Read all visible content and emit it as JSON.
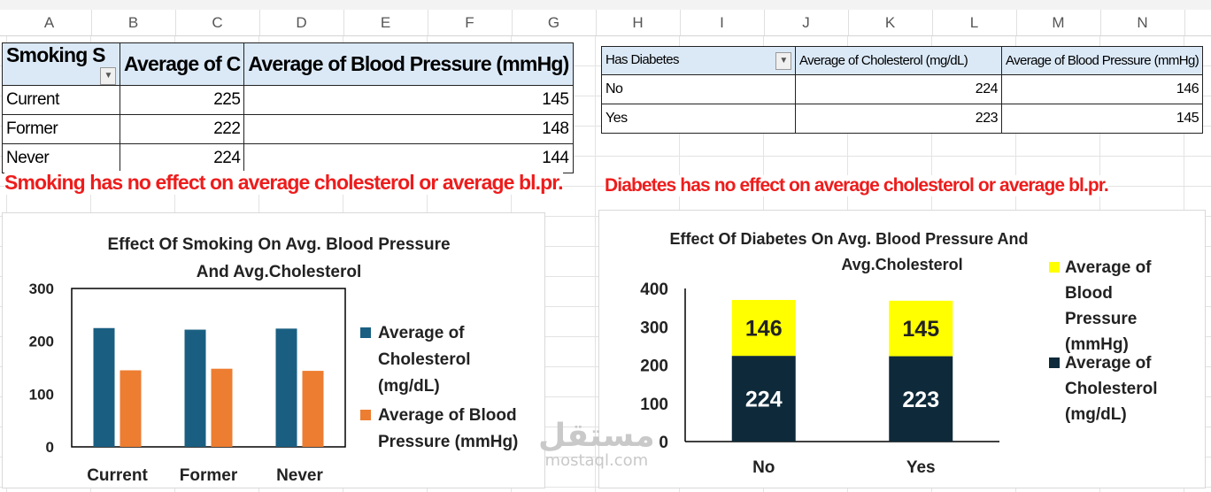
{
  "columns": [
    "A",
    "B",
    "C",
    "D",
    "E",
    "F",
    "G",
    "H",
    "I",
    "J",
    "K",
    "L",
    "M",
    "N"
  ],
  "table1": {
    "headers": [
      "Smoking S",
      "Average of C",
      "Average of Blood Pressure (mmHg)"
    ],
    "rows": [
      {
        "label": "Current",
        "chol": "225",
        "bp": "145"
      },
      {
        "label": "Former",
        "chol": "222",
        "bp": "148"
      },
      {
        "label": "Never",
        "chol": "224",
        "bp": "144"
      }
    ]
  },
  "table2": {
    "headers": [
      "Has Diabetes",
      "Average of Cholesterol (mg/dL)",
      "Average of Blood Pressure (mmHg)"
    ],
    "rows": [
      {
        "label": "No",
        "chol": "224",
        "bp": "146"
      },
      {
        "label": "Yes",
        "chol": "223",
        "bp": "145"
      }
    ]
  },
  "notes": {
    "smoking": "Smoking has no effect on average cholesterol or average bl.pr.",
    "diabetes": "Diabetes  has no effect on average cholesterol or average bl.pr."
  },
  "watermark": {
    "arabic": "مستقل",
    "latin": "mostaql.com"
  },
  "colors": {
    "cholesterol_bar": "#1a5f82",
    "bp_bar": "#ed7d31",
    "stack_chol": "#0e2a3a",
    "stack_bp": "#ffff00",
    "note_red": "#ee1c1c",
    "header_fill": "#dbe9f7"
  },
  "chart_data": [
    {
      "type": "bar",
      "title_lines": [
        "Effect Of Smoking On Avg. Blood Pressure",
        "And  Avg.Cholesterol"
      ],
      "categories": [
        "Current",
        "Former",
        "Never"
      ],
      "series": [
        {
          "name": "Average of Cholesterol (mg/dL)",
          "legend_lines": [
            "Average of",
            "Cholesterol",
            "(mg/dL)"
          ],
          "values": [
            225,
            222,
            224
          ]
        },
        {
          "name": "Average of Blood Pressure (mmHg)",
          "legend_lines": [
            "Average of Blood",
            "Pressure (mmHg)"
          ],
          "values": [
            145,
            148,
            144
          ]
        }
      ],
      "ylim": [
        0,
        300
      ],
      "yticks": [
        0,
        100,
        200,
        300
      ],
      "legend_position": "right"
    },
    {
      "type": "stacked-bar",
      "title_lines": [
        "Effect Of Diabetes On Avg. Blood Pressure  And",
        "Avg.Cholesterol"
      ],
      "categories": [
        "No",
        "Yes"
      ],
      "series": [
        {
          "name": "Average of Cholesterol (mg/dL)",
          "legend_lines": [
            "Average of",
            "Cholesterol",
            "(mg/dL)"
          ],
          "values": [
            224,
            223
          ]
        },
        {
          "name": "Average of Blood Pressure (mmHg)",
          "legend_lines": [
            "Average of",
            "Blood",
            "Pressure",
            "(mmHg)"
          ],
          "values": [
            146,
            145
          ]
        }
      ],
      "ylim": [
        0,
        400
      ],
      "yticks": [
        0,
        100,
        200,
        300,
        400
      ],
      "legend_position": "right"
    }
  ]
}
